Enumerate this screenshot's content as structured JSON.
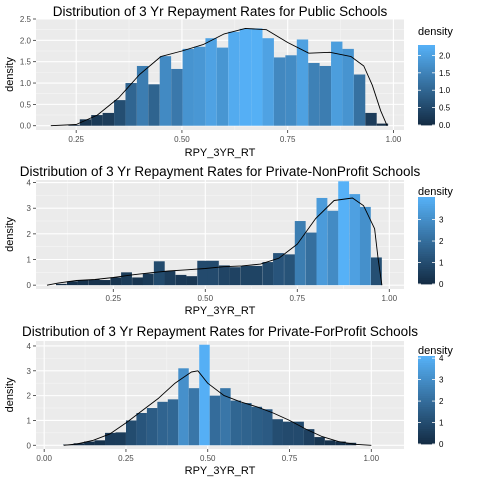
{
  "chart_data": [
    {
      "type": "histogram",
      "title": "Distribution of 3 Yr Repayment Rates for Public Schools",
      "xlabel": "RPY_3YR_RT",
      "ylabel": "density",
      "xlim": [
        0.155,
        1.025
      ],
      "ylim": [
        -0.1,
        2.5
      ],
      "x_ticks": [
        0.25,
        0.5,
        0.75,
        1.0
      ],
      "x_tick_labels": [
        "0.25",
        "0.50",
        "0.75",
        "1.00"
      ],
      "y_ticks": [
        0.0,
        0.5,
        1.0,
        1.5,
        2.0,
        2.5
      ],
      "y_tick_labels": [
        "0.0",
        "0.5",
        "1.0",
        "1.5",
        "2.0",
        "2.5"
      ],
      "grid": true,
      "bin_width": 0.0269,
      "bins": [
        {
          "x": 0.191,
          "density": 0.0
        },
        {
          "x": 0.218,
          "density": 0.0
        },
        {
          "x": 0.245,
          "density": 0.02
        },
        {
          "x": 0.272,
          "density": 0.15
        },
        {
          "x": 0.299,
          "density": 0.25
        },
        {
          "x": 0.326,
          "density": 0.3
        },
        {
          "x": 0.353,
          "density": 0.6
        },
        {
          "x": 0.38,
          "density": 1.0
        },
        {
          "x": 0.407,
          "density": 1.4
        },
        {
          "x": 0.434,
          "density": 0.97
        },
        {
          "x": 0.461,
          "density": 1.63
        },
        {
          "x": 0.488,
          "density": 1.33
        },
        {
          "x": 0.515,
          "density": 1.8
        },
        {
          "x": 0.542,
          "density": 1.85
        },
        {
          "x": 0.569,
          "density": 2.05
        },
        {
          "x": 0.596,
          "density": 1.83
        },
        {
          "x": 0.623,
          "density": 2.2
        },
        {
          "x": 0.65,
          "density": 2.27
        },
        {
          "x": 0.677,
          "density": 2.28
        },
        {
          "x": 0.704,
          "density": 2.05
        },
        {
          "x": 0.731,
          "density": 1.6
        },
        {
          "x": 0.758,
          "density": 1.65
        },
        {
          "x": 0.785,
          "density": 2.02
        },
        {
          "x": 0.812,
          "density": 1.47
        },
        {
          "x": 0.839,
          "density": 1.4
        },
        {
          "x": 0.866,
          "density": 1.97
        },
        {
          "x": 0.893,
          "density": 1.8
        },
        {
          "x": 0.92,
          "density": 1.2
        },
        {
          "x": 0.947,
          "density": 0.3
        },
        {
          "x": 0.974,
          "density": 0.05
        }
      ],
      "density_curve": {
        "x": [
          0.19,
          0.25,
          0.3,
          0.35,
          0.4,
          0.45,
          0.5,
          0.55,
          0.6,
          0.65,
          0.7,
          0.75,
          0.8,
          0.85,
          0.9,
          0.93,
          0.95,
          0.97,
          0.985
        ],
        "y": [
          0.0,
          0.03,
          0.25,
          0.65,
          1.2,
          1.62,
          1.75,
          1.9,
          2.15,
          2.28,
          2.25,
          1.95,
          1.7,
          1.72,
          1.62,
          1.4,
          0.95,
          0.35,
          0.0
        ]
      },
      "legend": {
        "title": "density",
        "ticks": [
          0.0,
          0.5,
          1.0,
          1.5,
          2.0
        ],
        "tick_labels": [
          "0.0",
          "0.5",
          "1.0",
          "1.5",
          "2.0"
        ],
        "max": 2.3,
        "position": "right"
      }
    },
    {
      "type": "histogram",
      "title": "Distribution of 3 Yr Repayment Rates for Private-NonProfit Schools",
      "xlabel": "RPY_3YR_RT",
      "ylabel": "density",
      "xlim": [
        0.04,
        1.04
      ],
      "ylim": [
        -0.15,
        4.1
      ],
      "x_ticks": [
        0.25,
        0.5,
        0.75,
        1.0
      ],
      "x_tick_labels": [
        "0.25",
        "0.50",
        "0.75",
        "1.00"
      ],
      "y_ticks": [
        0,
        1,
        2,
        3,
        4
      ],
      "y_tick_labels": [
        "0",
        "1",
        "2",
        "3",
        "4"
      ],
      "grid": true,
      "bin_width": 0.0295,
      "bins": [
        {
          "x": 0.109,
          "density": 0.05
        },
        {
          "x": 0.139,
          "density": 0.15
        },
        {
          "x": 0.168,
          "density": 0.2
        },
        {
          "x": 0.198,
          "density": 0.22
        },
        {
          "x": 0.227,
          "density": 0.2
        },
        {
          "x": 0.257,
          "density": 0.3
        },
        {
          "x": 0.286,
          "density": 0.5
        },
        {
          "x": 0.316,
          "density": 0.3
        },
        {
          "x": 0.345,
          "density": 0.45
        },
        {
          "x": 0.375,
          "density": 0.93
        },
        {
          "x": 0.404,
          "density": 0.55
        },
        {
          "x": 0.434,
          "density": 0.4
        },
        {
          "x": 0.463,
          "density": 0.35
        },
        {
          "x": 0.493,
          "density": 0.95
        },
        {
          "x": 0.522,
          "density": 0.95
        },
        {
          "x": 0.552,
          "density": 0.77
        },
        {
          "x": 0.581,
          "density": 0.7
        },
        {
          "x": 0.611,
          "density": 0.75
        },
        {
          "x": 0.64,
          "density": 0.75
        },
        {
          "x": 0.67,
          "density": 0.9
        },
        {
          "x": 0.699,
          "density": 1.25
        },
        {
          "x": 0.729,
          "density": 1.2
        },
        {
          "x": 0.758,
          "density": 2.5
        },
        {
          "x": 0.788,
          "density": 2.05
        },
        {
          "x": 0.817,
          "density": 3.4
        },
        {
          "x": 0.847,
          "density": 2.9
        },
        {
          "x": 0.876,
          "density": 4.05
        },
        {
          "x": 0.906,
          "density": 3.55
        },
        {
          "x": 0.935,
          "density": 3.05
        },
        {
          "x": 0.965,
          "density": 1.08
        }
      ],
      "density_curve": {
        "x": [
          0.07,
          0.1,
          0.15,
          0.2,
          0.25,
          0.3,
          0.35,
          0.4,
          0.45,
          0.5,
          0.55,
          0.6,
          0.65,
          0.7,
          0.75,
          0.8,
          0.85,
          0.9,
          0.93,
          0.96,
          0.97,
          0.98
        ],
        "y": [
          0.0,
          0.08,
          0.18,
          0.22,
          0.3,
          0.4,
          0.48,
          0.55,
          0.6,
          0.65,
          0.72,
          0.75,
          0.82,
          1.05,
          1.6,
          2.6,
          3.3,
          3.4,
          3.1,
          2.2,
          1.0,
          0.0
        ]
      },
      "legend": {
        "title": "density",
        "ticks": [
          0,
          1,
          2,
          3
        ],
        "tick_labels": [
          "0",
          "1",
          "2",
          "3"
        ],
        "max": 4.05,
        "position": "right"
      }
    },
    {
      "type": "histogram",
      "title": "Distribution of 3 Yr Repayment Rates for Private-ForProfit Schools",
      "xlabel": "RPY_3YR_RT",
      "ylabel": "density",
      "xlim": [
        -0.025,
        1.1
      ],
      "ylim": [
        -0.15,
        4.2
      ],
      "x_ticks": [
        0.0,
        0.25,
        0.5,
        0.75,
        1.0
      ],
      "x_tick_labels": [
        "0.00",
        "0.25",
        "0.50",
        "0.75",
        "1.00"
      ],
      "y_ticks": [
        0,
        1,
        2,
        3,
        4
      ],
      "y_tick_labels": [
        "0",
        "1",
        "2",
        "3",
        "4"
      ],
      "grid": true,
      "bin_width": 0.032,
      "bins": [
        {
          "x": 0.074,
          "density": 0.03
        },
        {
          "x": 0.106,
          "density": 0.08
        },
        {
          "x": 0.138,
          "density": 0.15
        },
        {
          "x": 0.17,
          "density": 0.2
        },
        {
          "x": 0.202,
          "density": 0.5
        },
        {
          "x": 0.234,
          "density": 0.52
        },
        {
          "x": 0.266,
          "density": 1.0
        },
        {
          "x": 0.298,
          "density": 1.3
        },
        {
          "x": 0.33,
          "density": 1.5
        },
        {
          "x": 0.362,
          "density": 1.75
        },
        {
          "x": 0.394,
          "density": 1.85
        },
        {
          "x": 0.426,
          "density": 3.1
        },
        {
          "x": 0.458,
          "density": 2.3
        },
        {
          "x": 0.49,
          "density": 4.05
        },
        {
          "x": 0.522,
          "density": 2.0
        },
        {
          "x": 0.554,
          "density": 2.3
        },
        {
          "x": 0.586,
          "density": 1.8
        },
        {
          "x": 0.618,
          "density": 1.7
        },
        {
          "x": 0.65,
          "density": 1.55
        },
        {
          "x": 0.682,
          "density": 1.45
        },
        {
          "x": 0.714,
          "density": 1.05
        },
        {
          "x": 0.746,
          "density": 0.95
        },
        {
          "x": 0.778,
          "density": 0.95
        },
        {
          "x": 0.81,
          "density": 0.65
        },
        {
          "x": 0.842,
          "density": 0.33
        },
        {
          "x": 0.874,
          "density": 0.2
        },
        {
          "x": 0.906,
          "density": 0.15
        },
        {
          "x": 0.938,
          "density": 0.1
        }
      ],
      "density_curve": {
        "x": [
          0.06,
          0.1,
          0.15,
          0.2,
          0.25,
          0.3,
          0.35,
          0.4,
          0.45,
          0.47,
          0.5,
          0.55,
          0.6,
          0.65,
          0.7,
          0.75,
          0.8,
          0.85,
          0.9,
          0.95,
          1.0
        ],
        "y": [
          0.0,
          0.05,
          0.2,
          0.45,
          0.9,
          1.4,
          1.9,
          2.5,
          2.95,
          3.0,
          2.5,
          2.0,
          1.75,
          1.55,
          1.3,
          1.0,
          0.65,
          0.35,
          0.15,
          0.04,
          0.0
        ]
      },
      "legend": {
        "title": "density",
        "ticks": [
          0,
          1,
          2,
          3,
          4
        ],
        "tick_labels": [
          "0",
          "1",
          "2",
          "3",
          "4"
        ],
        "max": 4.1,
        "position": "right"
      }
    }
  ],
  "colors": {
    "panel_bg": "#ebebeb",
    "grid_major": "#ffffff",
    "fill_low": "#132b43",
    "fill_high": "#56b1f7",
    "curve": "#000000"
  }
}
